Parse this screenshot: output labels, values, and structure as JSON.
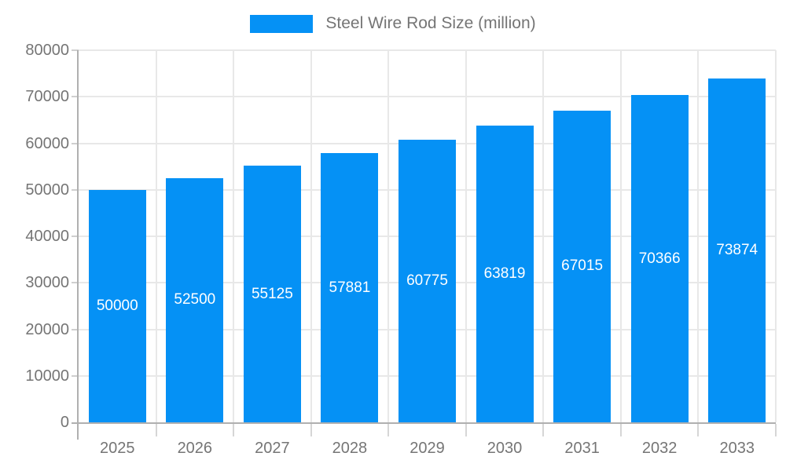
{
  "legend": {
    "label": "Steel Wire Rod Size (million)"
  },
  "chart_data": {
    "type": "bar",
    "title": "Steel Wire Rod Size (million)",
    "xlabel": "",
    "ylabel": "",
    "categories": [
      "2025",
      "2026",
      "2027",
      "2028",
      "2029",
      "2030",
      "2031",
      "2032",
      "2033"
    ],
    "series": [
      {
        "name": "Steel Wire Rod Size (million)",
        "values": [
          50000,
          52500,
          55125,
          57881,
          60775,
          63819,
          67015,
          70366,
          73874
        ]
      }
    ],
    "bar_labels": [
      "50000",
      "52500",
      "55125",
      "57881",
      "60775",
      "63819",
      "67015",
      "70366",
      "73874"
    ],
    "y_tick_labels": [
      "0",
      "10000",
      "20000",
      "30000",
      "40000",
      "50000",
      "60000",
      "70000",
      "80000"
    ],
    "ylim": [
      0,
      80000
    ],
    "y_step": 10000,
    "grid": true,
    "legend_position": "top-center",
    "colors": {
      "bar": "#0591f5",
      "grid": "#e8e8e8",
      "axis": "#b0b0b0",
      "tick": "#cfcfcf",
      "tick_text": "#757575",
      "bar_label_text": "#ffffff",
      "background": "#ffffff"
    }
  }
}
